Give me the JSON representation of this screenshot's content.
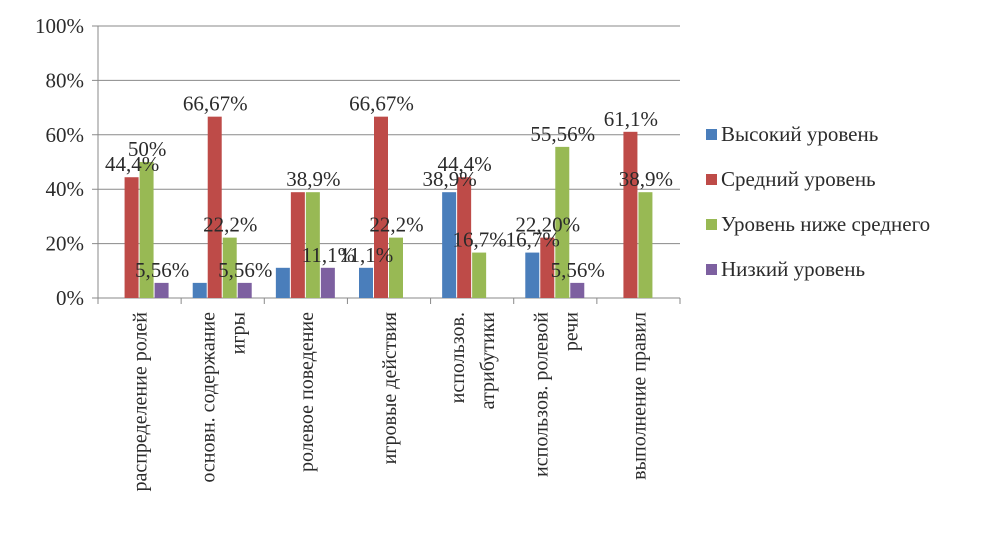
{
  "chart_data": {
    "type": "bar",
    "categories": [
      [
        "распределение ролей"
      ],
      [
        "основн. содержание",
        "игры"
      ],
      [
        "ролевое поведение"
      ],
      [
        "игровые действия"
      ],
      [
        "использов.",
        "атрибутики"
      ],
      [
        "использов. ролевой",
        "речи"
      ],
      [
        "выполнение правил"
      ]
    ],
    "series": [
      {
        "name": "Высокий уровень",
        "color": "#4a7ebb",
        "values": [
          0,
          5.56,
          11.1,
          11.1,
          38.9,
          16.7,
          0
        ],
        "labels": [
          "",
          "",
          "",
          "11,1%",
          "38,9%",
          "16,7%",
          ""
        ]
      },
      {
        "name": "Средний уровень",
        "color": "#be4b48",
        "values": [
          44.4,
          66.67,
          38.9,
          66.67,
          44.4,
          22.2,
          61.1
        ],
        "labels": [
          "44,4%",
          "66,67%",
          "",
          "66,67%",
          "44,4%",
          "22,20%",
          "61,1%"
        ]
      },
      {
        "name": "Уровень ниже среднего",
        "color": "#98b954",
        "values": [
          50,
          22.2,
          38.9,
          22.2,
          16.7,
          55.56,
          38.9
        ],
        "labels": [
          "50%",
          "22,2%",
          "38,9%",
          "22,2%",
          "16,7%",
          "55,56%",
          "38,9%"
        ]
      },
      {
        "name": "Низкий уровень",
        "color": "#7d60a0",
        "values": [
          5.56,
          5.56,
          11.1,
          0,
          0,
          5.56,
          0
        ],
        "labels": [
          "5,56%",
          "5,56%",
          "11,1%",
          "",
          "",
          "5,56%",
          ""
        ]
      }
    ],
    "y_ticks": [
      "0%",
      "20%",
      "40%",
      "60%",
      "80%",
      "100%"
    ],
    "ylim": [
      0,
      100
    ],
    "grid": true,
    "legend_position": "right"
  }
}
